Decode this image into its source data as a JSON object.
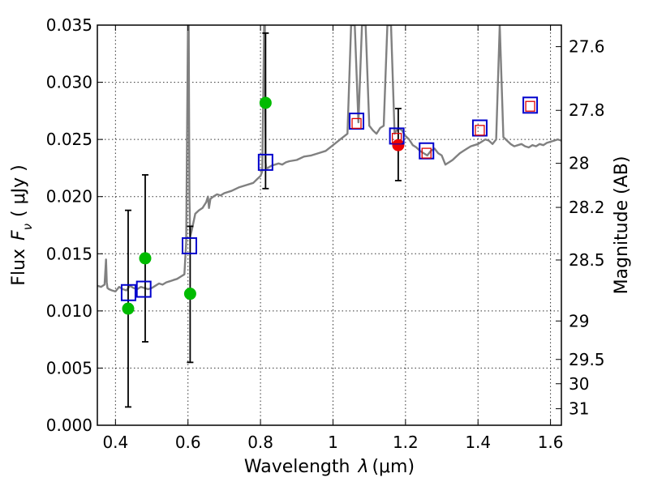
{
  "chart_data": {
    "type": "scatter",
    "xlabel": "Wavelength  λ (μm)",
    "ylabel": "Flux  F_ν  ( μJy )",
    "ylabel_parts": [
      "Flux",
      "F",
      "ν",
      "( μJy )"
    ],
    "xlabel_parts": [
      "Wavelength",
      "λ",
      "(μm)"
    ],
    "right_ylabel": "Magnitude (AB)",
    "xlim": [
      0.35,
      1.63
    ],
    "ylim": [
      0.0,
      0.035
    ],
    "xticks": [
      0.4,
      0.6,
      0.8,
      1.0,
      1.2,
      1.4,
      1.6
    ],
    "xtick_labels": [
      "0.4",
      "0.6",
      "0.8",
      "1",
      "1.2",
      "1.4",
      "1.6"
    ],
    "yticks": [
      0.0,
      0.005,
      0.01,
      0.015,
      0.02,
      0.025,
      0.03,
      0.035
    ],
    "ytick_labels": [
      "0.000",
      "0.005",
      "0.010",
      "0.015",
      "0.020",
      "0.025",
      "0.030",
      "0.035"
    ],
    "right_ticks": [
      27.6,
      27.8,
      28.0,
      28.2,
      28.5,
      29.0,
      29.5,
      30.0,
      31.0
    ],
    "right_tick_labels": [
      "27.6",
      "27.8",
      "28",
      "28.2",
      "28.5",
      "29",
      "29.5",
      "30",
      "31"
    ],
    "grid": true,
    "colors": {
      "model": "#808080",
      "photometry_green": "#00bb00",
      "photometry_red": "#ee0000",
      "model_box": "#0000cc",
      "model_box_inner": "#dd0000",
      "errorbar": "#000000"
    },
    "series": [
      {
        "name": "model-spectrum",
        "kind": "line",
        "x": [
          0.35,
          0.36,
          0.37,
          0.374,
          0.376,
          0.378,
          0.382,
          0.39,
          0.4,
          0.41,
          0.42,
          0.43,
          0.44,
          0.45,
          0.46,
          0.47,
          0.48,
          0.49,
          0.5,
          0.51,
          0.52,
          0.53,
          0.54,
          0.55,
          0.56,
          0.57,
          0.58,
          0.59,
          0.595,
          0.6,
          0.602,
          0.604,
          0.606,
          0.61,
          0.62,
          0.63,
          0.64,
          0.65,
          0.655,
          0.658,
          0.662,
          0.67,
          0.68,
          0.69,
          0.7,
          0.72,
          0.74,
          0.76,
          0.78,
          0.79,
          0.8,
          0.805,
          0.81,
          0.812,
          0.814,
          0.816,
          0.82,
          0.83,
          0.84,
          0.85,
          0.86,
          0.87,
          0.88,
          0.9,
          0.92,
          0.94,
          0.96,
          0.98,
          1.0,
          1.02,
          1.04,
          1.05,
          1.06,
          1.07,
          1.08,
          1.09,
          1.1,
          1.11,
          1.12,
          1.13,
          1.14,
          1.15,
          1.16,
          1.17,
          1.18,
          1.19,
          1.2,
          1.21,
          1.22,
          1.23,
          1.24,
          1.25,
          1.26,
          1.27,
          1.28,
          1.29,
          1.3,
          1.31,
          1.32,
          1.33,
          1.34,
          1.35,
          1.36,
          1.37,
          1.38,
          1.39,
          1.4,
          1.41,
          1.42,
          1.43,
          1.44,
          1.45,
          1.46,
          1.47,
          1.48,
          1.49,
          1.5,
          1.51,
          1.52,
          1.53,
          1.54,
          1.55,
          1.56,
          1.57,
          1.58,
          1.59,
          1.6,
          1.61,
          1.62,
          1.63
        ],
        "y": [
          0.0122,
          0.0121,
          0.0123,
          0.0145,
          0.0125,
          0.012,
          0.0119,
          0.0118,
          0.0117,
          0.0121,
          0.0119,
          0.0118,
          0.0122,
          0.012,
          0.0119,
          0.0121,
          0.012,
          0.0119,
          0.012,
          0.0122,
          0.0124,
          0.0123,
          0.0125,
          0.0126,
          0.0127,
          0.0128,
          0.013,
          0.0132,
          0.016,
          0.035,
          0.035,
          0.02,
          0.0165,
          0.017,
          0.0185,
          0.0188,
          0.019,
          0.0195,
          0.02,
          0.019,
          0.0198,
          0.02,
          0.0202,
          0.0201,
          0.0203,
          0.0205,
          0.0208,
          0.021,
          0.0212,
          0.0215,
          0.0218,
          0.0222,
          0.035,
          0.035,
          0.023,
          0.0225,
          0.0225,
          0.0227,
          0.0228,
          0.0229,
          0.0228,
          0.023,
          0.0231,
          0.0232,
          0.0235,
          0.0236,
          0.0238,
          0.024,
          0.0245,
          0.025,
          0.0255,
          0.035,
          0.035,
          0.0265,
          0.035,
          0.035,
          0.0262,
          0.0258,
          0.0255,
          0.026,
          0.0262,
          0.035,
          0.035,
          0.0255,
          0.026,
          0.0258,
          0.0253,
          0.025,
          0.0245,
          0.0243,
          0.024,
          0.0238,
          0.0236,
          0.024,
          0.0242,
          0.0238,
          0.0236,
          0.0228,
          0.023,
          0.0232,
          0.0235,
          0.0238,
          0.024,
          0.0242,
          0.0244,
          0.0245,
          0.0246,
          0.0248,
          0.025,
          0.0249,
          0.0246,
          0.025,
          0.035,
          0.0252,
          0.0249,
          0.0246,
          0.0244,
          0.0245,
          0.0246,
          0.0244,
          0.0243,
          0.0245,
          0.0244,
          0.0246,
          0.0245,
          0.0247,
          0.0248,
          0.0249,
          0.025,
          0.0249
        ]
      },
      {
        "name": "photometry-green",
        "kind": "points",
        "x": [
          0.435,
          0.482,
          0.606,
          0.814
        ],
        "y": [
          0.0102,
          0.0146,
          0.0115,
          0.0282
        ]
      },
      {
        "name": "photometry-red",
        "kind": "points",
        "x": [
          1.18
        ],
        "y": [
          0.0245
        ]
      },
      {
        "name": "model-boxes-blue",
        "kind": "squares",
        "x": [
          0.436,
          0.478,
          0.604,
          0.814,
          1.065,
          1.176,
          1.258,
          1.405,
          1.544
        ],
        "y": [
          0.0116,
          0.0119,
          0.0157,
          0.023,
          0.0266,
          0.0253,
          0.024,
          0.026,
          0.028
        ]
      },
      {
        "name": "model-boxes-red",
        "kind": "small-squares",
        "x": [
          1.065,
          1.176,
          1.258,
          1.405,
          1.544
        ],
        "y": [
          0.0264,
          0.0251,
          0.0238,
          0.0258,
          0.0279
        ]
      },
      {
        "name": "errorbars",
        "kind": "errorbars",
        "x": [
          0.435,
          0.482,
          0.606,
          0.814,
          1.18
        ],
        "y_low": [
          0.0016,
          0.0073,
          0.0055,
          0.0207,
          0.0214
        ],
        "y_high": [
          0.0188,
          0.0219,
          0.0174,
          0.0343,
          0.0277
        ]
      }
    ]
  }
}
